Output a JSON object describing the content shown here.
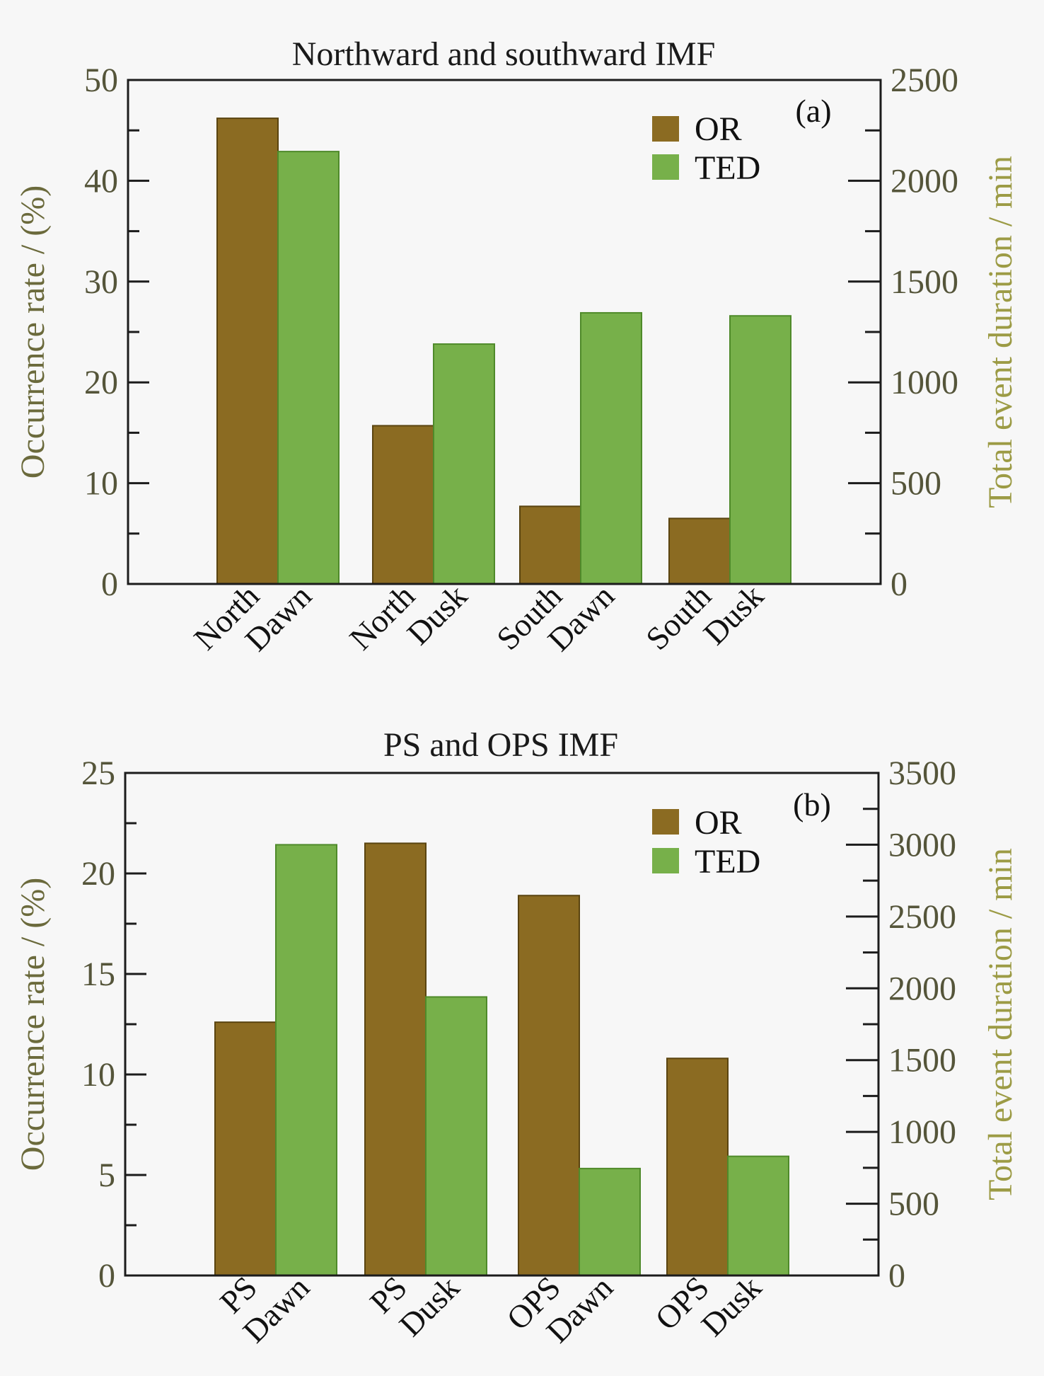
{
  "colors": {
    "or_bar": "#8b6b22",
    "ted_bar": "#77b04a",
    "or_edge": "#5a4410",
    "ted_edge": "#4f8a2a"
  },
  "chart_data": [
    {
      "type": "bar",
      "panel_tag": "(a)",
      "title": "Northward and southward IMF",
      "categories": [
        [
          "North",
          "Dawn"
        ],
        [
          "North",
          "Dusk"
        ],
        [
          "South",
          "Dawn"
        ],
        [
          "South",
          "Dusk"
        ]
      ],
      "ylabel": "Occurrence rate / (%)",
      "ylabel_right": "Total event duration / min",
      "ylim": [
        0,
        50
      ],
      "ylim_right": [
        0,
        2500
      ],
      "yticks": [
        0,
        10,
        20,
        30,
        40,
        50
      ],
      "yticks_right": [
        0,
        500,
        1000,
        1500,
        2000,
        2500
      ],
      "legend": {
        "placement": "top-right",
        "entries": [
          "OR",
          "TED"
        ]
      },
      "series": [
        {
          "name": "OR",
          "axis": "left",
          "values": [
            46.2,
            15.7,
            7.7,
            6.5
          ]
        },
        {
          "name": "TED",
          "axis": "right",
          "values": [
            2145,
            1190,
            1345,
            1330
          ]
        }
      ]
    },
    {
      "type": "bar",
      "panel_tag": "(b)",
      "title": "PS and OPS IMF",
      "categories": [
        [
          "PS",
          "Dawn"
        ],
        [
          "PS",
          "Dusk"
        ],
        [
          "OPS",
          "Dawn"
        ],
        [
          "OPS",
          "Dusk"
        ]
      ],
      "ylabel": "Occurrence rate / (%)",
      "ylabel_right": "Total event duration / min",
      "ylim": [
        0,
        25
      ],
      "ylim_right": [
        0,
        3500
      ],
      "yticks": [
        0,
        5,
        10,
        15,
        20,
        25
      ],
      "yticks_right": [
        0,
        500,
        1000,
        1500,
        2000,
        2500,
        3000,
        3500
      ],
      "legend": {
        "placement": "top-right",
        "entries": [
          "OR",
          "TED"
        ]
      },
      "series": [
        {
          "name": "OR",
          "axis": "left",
          "values": [
            12.6,
            21.5,
            18.9,
            10.8
          ]
        },
        {
          "name": "TED",
          "axis": "right",
          "values": [
            3000,
            1940,
            745,
            830
          ]
        }
      ]
    }
  ]
}
